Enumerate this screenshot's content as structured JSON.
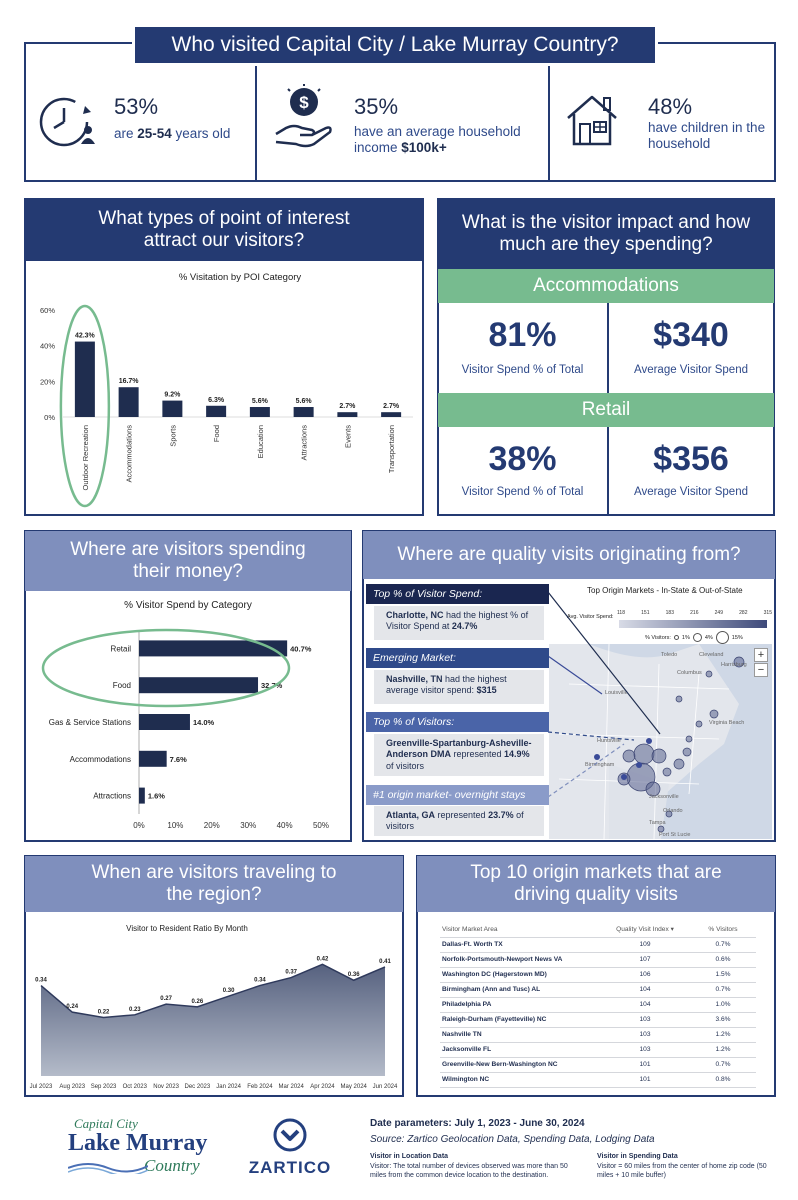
{
  "title": "Who visited Capital City / Lake Murray Country?",
  "stats": [
    {
      "icon": "clock-person-icon",
      "pct": "53%",
      "line1": "are ",
      "bold": "25-54",
      "line2": " years old"
    },
    {
      "icon": "money-hand-icon",
      "pct": "35%",
      "line1": "have an average household income ",
      "bold": "$100k+",
      "line2": ""
    },
    {
      "icon": "house-icon",
      "pct": "48%",
      "line1": "have children in the household",
      "bold": "",
      "line2": ""
    }
  ],
  "poi": {
    "heading": "What types of point of interest attract our visitors?",
    "chart_data": {
      "type": "bar",
      "title": "% Visitation by POI Category",
      "categories": [
        "Outdoor Recreation",
        "Accommodations",
        "Sports",
        "Food",
        "Education",
        "Attractions",
        "Events",
        "Transportation"
      ],
      "values": [
        42.3,
        16.7,
        9.2,
        6.3,
        5.6,
        5.6,
        2.7,
        2.7
      ],
      "labels": [
        "42.3%",
        "16.7%",
        "9.2%",
        "6.3%",
        "5.6%",
        "5.6%",
        "2.7%",
        "2.7%"
      ],
      "yticks": [
        "0%",
        "20%",
        "40%",
        "60%"
      ],
      "ylim": [
        0,
        60
      ],
      "highlight": "Outdoor Recreation"
    }
  },
  "impact": {
    "heading": "What is the visitor impact and how much are they spending?",
    "sections": [
      {
        "name": "Accommodations",
        "pct": "81%",
        "pct_label": "Visitor Spend % of Total",
        "avg": "$340",
        "avg_label": "Average Visitor Spend"
      },
      {
        "name": "Retail",
        "pct": "38%",
        "pct_label": "Visitor Spend % of Total",
        "avg": "$356",
        "avg_label": "Average Visitor Spend"
      }
    ]
  },
  "spend": {
    "heading": "Where are visitors spending their money?",
    "chart_data": {
      "type": "bar",
      "orientation": "horizontal",
      "title": "% Visitor Spend by Category",
      "categories": [
        "Retail",
        "Food",
        "Gas & Service Stations",
        "Accommodations",
        "Attractions"
      ],
      "values": [
        40.7,
        32.7,
        14.0,
        7.6,
        1.6
      ],
      "labels": [
        "40.7%",
        "32.7%",
        "14.0%",
        "7.6%",
        "1.6%"
      ],
      "xticks": [
        "0%",
        "10%",
        "20%",
        "30%",
        "40%",
        "50%"
      ],
      "xlim": [
        0,
        50
      ]
    }
  },
  "origin": {
    "heading": "Where are quality visits originating from?",
    "map_title": "Top Origin Markets - In-State & Out-of-State",
    "legend_spend_label": "Avg. Visitor Spend:",
    "legend_spend_values": [
      "118",
      "151",
      "183",
      "216",
      "249",
      "282",
      "315"
    ],
    "legend_visitors_label": "% Visitors:",
    "legend_visitors_values": [
      "1%",
      "4%",
      "15%"
    ],
    "map_labels": [
      "Cleveland",
      "Toledo",
      "Harrisburg",
      "Louisville",
      "Virginia Beach",
      "Columbus",
      "Birmingham",
      "Jacksonville",
      "Tampa",
      "Port St Lucie",
      "Orlando",
      "Huntsville"
    ],
    "callouts": [
      {
        "header": "Top % of Visitor Spend:",
        "bold": "Charlotte, NC",
        "text": " had the highest % of Visitor Spend at ",
        "bold2": "24.7%"
      },
      {
        "header": "Emerging Market:",
        "bold": "Nashville, TN",
        "text": " had the highest average visitor spend: ",
        "bold2": "$315"
      },
      {
        "header": "Top % of Visitors:",
        "bold": "Greenville-Spartanburg-Asheville-Anderson DMA",
        "text": " represented ",
        "bold2": "14.9%",
        "tail": " of visitors"
      },
      {
        "header": "#1 origin market- overnight stays",
        "bold": "Atlanta, GA",
        "text": " represented ",
        "bold2": "23.7%",
        "tail": " of visitors"
      }
    ]
  },
  "travel": {
    "heading": "When are visitors traveling to the region?",
    "chart_data": {
      "type": "area",
      "title": "Visitor to Resident Ratio By Month",
      "categories": [
        "Jul 2023",
        "Aug 2023",
        "Sep 2023",
        "Oct 2023",
        "Nov 2023",
        "Dec 2023",
        "Jan 2024",
        "Feb 2024",
        "Mar 2024",
        "Apr 2024",
        "May 2024",
        "Jun 2024"
      ],
      "values": [
        0.34,
        0.24,
        0.22,
        0.23,
        0.27,
        0.26,
        0.3,
        0.34,
        0.37,
        0.42,
        0.36,
        0.41
      ],
      "labels": [
        "0.34",
        "0.24",
        "0.22",
        "0.23",
        "0.27",
        "0.26",
        "0.30",
        "0.34",
        "0.37",
        "0.42",
        "0.36",
        "0.41"
      ]
    }
  },
  "top10": {
    "heading": "Top 10 origin markets that are driving quality visits",
    "columns": [
      "Visitor Market Area",
      "Quality Visit Index ▾",
      "% Visitors"
    ],
    "rows": [
      [
        "Dallas-Ft. Worth TX",
        "109",
        "0.7%"
      ],
      [
        "Norfolk-Portsmouth-Newport News VA",
        "107",
        "0.6%"
      ],
      [
        "Washington DC (Hagerstown MD)",
        "106",
        "1.5%"
      ],
      [
        "Birmingham (Ann and Tusc) AL",
        "104",
        "0.7%"
      ],
      [
        "Philadelphia PA",
        "104",
        "1.0%"
      ],
      [
        "Raleigh-Durham (Fayetteville) NC",
        "103",
        "3.6%"
      ],
      [
        "Nashville TN",
        "103",
        "1.2%"
      ],
      [
        "Jacksonville FL",
        "103",
        "1.2%"
      ],
      [
        "Greenville-New Bern-Washington NC",
        "101",
        "0.7%"
      ],
      [
        "Wilmington NC",
        "101",
        "0.8%"
      ]
    ]
  },
  "footer": {
    "logo_line1": "Capital City",
    "logo_line2": "Lake Murray",
    "logo_line3": "Country",
    "zartico": "ZARTICO",
    "date_params": "Date parameters: July 1, 2023 - June 30, 2024",
    "source": "Source: Zartico Geolocation Data, Spending Data, Lodging Data",
    "def1_title": "Visitor in Location Data",
    "def1_text": "Visitor: The total number of devices observed was more than 50 miles from the common device location to the destination.",
    "def2_title": "Visitor in Spending Data",
    "def2_text": "Visitor = 60 miles from the center of home zip code (50 miles + 10 mile buffer)"
  }
}
